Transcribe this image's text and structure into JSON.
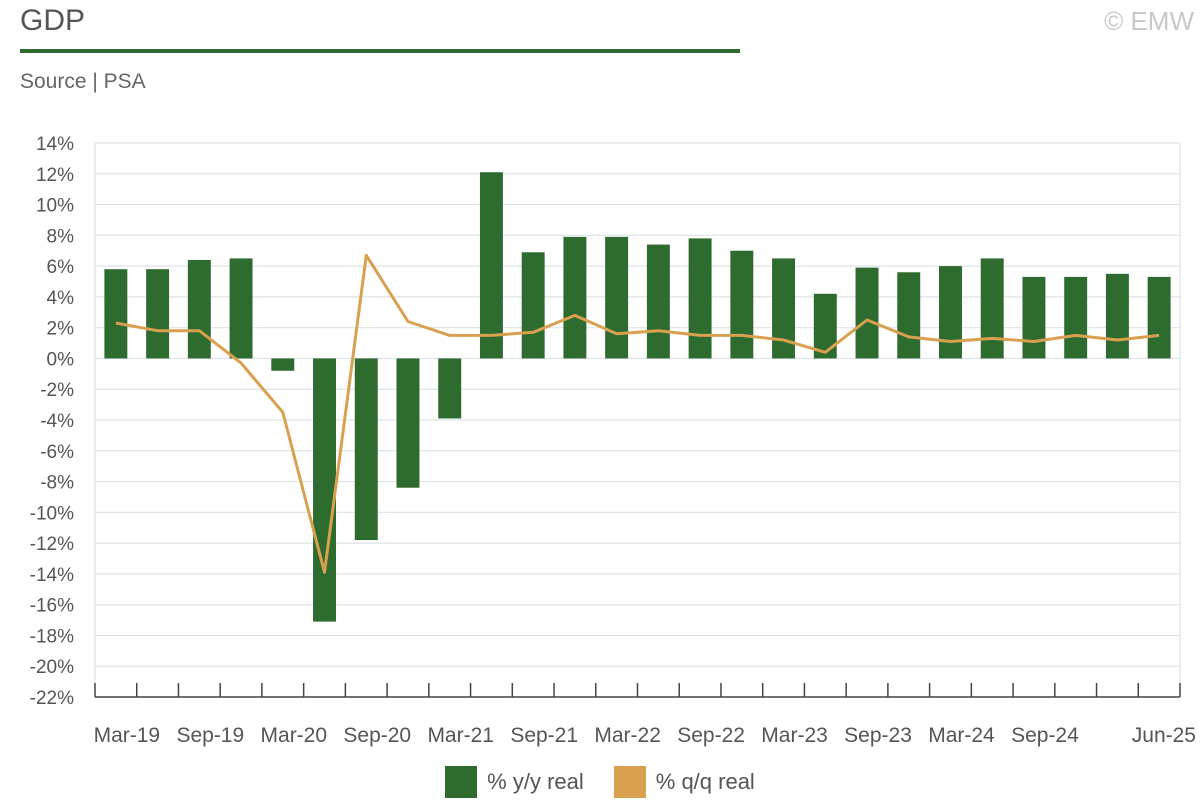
{
  "header": {
    "title": "GDP",
    "source": "Source | PSA",
    "copyright": "© EMW"
  },
  "colors": {
    "accent": "#2e6b2e",
    "bar": "#2e6b2e",
    "line": "#d9a04f",
    "grid": "#dde3ea",
    "axis": "#444444"
  },
  "chart_data": {
    "type": "bar",
    "categories": [
      "Mar-19",
      "Jun-19",
      "Sep-19",
      "Dec-19",
      "Mar-20",
      "Jun-20",
      "Sep-20",
      "Dec-20",
      "Mar-21",
      "Jun-21",
      "Sep-21",
      "Dec-21",
      "Mar-22",
      "Jun-22",
      "Sep-22",
      "Dec-22",
      "Mar-23",
      "Jun-23",
      "Sep-23",
      "Dec-23",
      "Mar-24",
      "Jun-24",
      "Sep-24",
      "Dec-24",
      "Mar-25",
      "Jun-25"
    ],
    "x_tick_labels": [
      "Mar-19",
      "Sep-19",
      "Mar-20",
      "Sep-20",
      "Mar-21",
      "Sep-21",
      "Mar-22",
      "Sep-22",
      "Mar-23",
      "Sep-23",
      "Mar-24",
      "Sep-24",
      "Jun-25"
    ],
    "series": [
      {
        "name": "% y/y real",
        "type": "bar",
        "values": [
          5.8,
          5.8,
          6.4,
          6.5,
          -0.8,
          -17.1,
          -11.8,
          -8.4,
          -3.9,
          12.1,
          6.9,
          7.9,
          7.9,
          7.4,
          7.8,
          7.0,
          6.5,
          4.2,
          5.9,
          5.6,
          6.0,
          6.5,
          5.3,
          5.3,
          5.5,
          5.3
        ]
      },
      {
        "name": "% q/q real",
        "type": "line",
        "values": [
          2.3,
          1.8,
          1.8,
          -0.3,
          -3.5,
          -13.9,
          6.7,
          2.4,
          1.5,
          1.5,
          1.7,
          2.8,
          1.6,
          1.8,
          1.5,
          1.5,
          1.2,
          0.4,
          2.5,
          1.4,
          1.1,
          1.3,
          1.1,
          1.5,
          1.2,
          1.5
        ]
      }
    ],
    "ylim": [
      -22,
      14
    ],
    "y_tick_step": 2,
    "y_tick_format": "percent",
    "grid": true,
    "legend": "bottom-center"
  }
}
